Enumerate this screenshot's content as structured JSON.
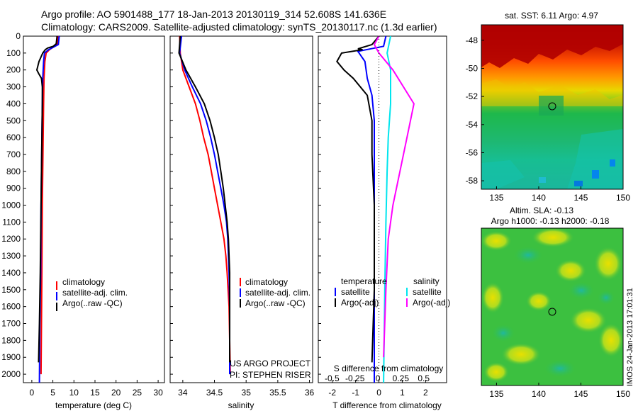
{
  "header": {
    "line1": "Argo profile: AO 5901488_177 18-Jan-2013 20130119_314 52.608S 141.636E",
    "line2": "Climatology: CARS2009. Satellite-adjusted climatology: synTS_20130117.nc (1.3d earlier)"
  },
  "colors": {
    "climatology": "#ff0000",
    "satellite": "#0000ff",
    "argo": "#000000",
    "sat_salinity": "#00e5ee",
    "argo_salinity": "#ff00ff"
  },
  "depth_ticks": [
    "0",
    "100",
    "200",
    "300",
    "400",
    "500",
    "600",
    "700",
    "800",
    "900",
    "1000",
    "1100",
    "1200",
    "1300",
    "1400",
    "1500",
    "1600",
    "1700",
    "1800",
    "1900",
    "2000"
  ],
  "legend_profiles": {
    "climatology": "climatology",
    "satellite": "satellite-adj. clim.",
    "argo": "Argo(..raw -QC)"
  },
  "legend_diff": {
    "temp_title": "temperature",
    "sal_title": "salinity",
    "temp_sat": "satellite",
    "temp_argo": "Argo(-adj)",
    "sal_sat": "satellite",
    "sal_argo": "Argo(-adj)"
  },
  "credits": {
    "line1": "US ARGO PROJECT",
    "line2": "PI: STEPHEN RISER"
  },
  "sst_map": {
    "title": "sat. SST: 6.11  Argo: 4.97",
    "xticks": [
      "135",
      "140",
      "145",
      "150"
    ],
    "yticks": [
      "-48",
      "-50",
      "-52",
      "-54",
      "-56",
      "-58"
    ]
  },
  "sla_map": {
    "title1": "Altim. SLA: -0.13",
    "title2": "Argo h1000: -0.13 h2000: -0.18",
    "xticks": [
      "135",
      "140",
      "145",
      "150"
    ],
    "yticks": [
      "-48",
      "-50",
      "-52",
      "-54",
      "-56",
      "-58"
    ]
  },
  "imos_stamp": "IMOS 24-Jan-2013 17:01:31",
  "chart_data": [
    {
      "type": "line",
      "xlabel": "temperature (deg C)",
      "xticks": [
        "0",
        "5",
        "10",
        "15",
        "20",
        "25",
        "30"
      ],
      "xlim": [
        -2,
        31.5
      ],
      "ylim": [
        2050,
        0
      ],
      "series": [
        {
          "name": "climatology",
          "color": "#ff0000",
          "points": [
            [
              6.2,
              0
            ],
            [
              6.0,
              50
            ],
            [
              4.2,
              80
            ],
            [
              3.4,
              100
            ],
            [
              3.1,
              150
            ],
            [
              2.9,
              250
            ],
            [
              2.8,
              400
            ],
            [
              2.7,
              600
            ],
            [
              2.6,
              800
            ],
            [
              2.5,
              1000
            ],
            [
              2.4,
              1400
            ],
            [
              2.3,
              1700
            ],
            [
              2.2,
              2000
            ]
          ]
        },
        {
          "name": "satellite-adj. clim.",
          "color": "#0000ff",
          "points": [
            [
              6.5,
              0
            ],
            [
              6.3,
              50
            ],
            [
              4.0,
              80
            ],
            [
              3.0,
              100
            ],
            [
              2.8,
              150
            ],
            [
              2.6,
              250
            ],
            [
              2.5,
              400
            ],
            [
              2.4,
              600
            ],
            [
              2.3,
              800
            ],
            [
              2.2,
              1000
            ],
            [
              2.1,
              1400
            ],
            [
              1.9,
              1700
            ],
            [
              1.8,
              2050
            ]
          ]
        },
        {
          "name": "Argo(..raw -QC)",
          "color": "#000000",
          "points": [
            [
              6.0,
              0
            ],
            [
              5.8,
              45
            ],
            [
              5.1,
              60
            ],
            [
              3.8,
              70
            ],
            [
              3.2,
              80
            ],
            [
              2.6,
              100
            ],
            [
              1.7,
              150
            ],
            [
              1.2,
              200
            ],
            [
              1.6,
              220
            ],
            [
              2.3,
              250
            ],
            [
              2.5,
              300
            ],
            [
              2.5,
              400
            ],
            [
              2.4,
              600
            ],
            [
              2.3,
              800
            ],
            [
              2.2,
              1000
            ],
            [
              2.0,
              1400
            ],
            [
              1.8,
              1700
            ],
            [
              1.6,
              1930
            ]
          ]
        }
      ]
    },
    {
      "type": "line",
      "xlabel": "salinity",
      "xticks": [
        "34",
        "34.5",
        "35",
        "35.5",
        "36"
      ],
      "xlim": [
        33.8,
        36.05
      ],
      "ylim": [
        2050,
        0
      ],
      "series": [
        {
          "name": "climatology",
          "color": "#ff0000",
          "points": [
            [
              33.95,
              0
            ],
            [
              33.96,
              100
            ],
            [
              34.0,
              200
            ],
            [
              34.1,
              300
            ],
            [
              34.2,
              400
            ],
            [
              34.27,
              500
            ],
            [
              34.33,
              600
            ],
            [
              34.4,
              700
            ],
            [
              34.45,
              800
            ],
            [
              34.5,
              900
            ],
            [
              34.55,
              1000
            ],
            [
              34.6,
              1100
            ],
            [
              34.65,
              1200
            ],
            [
              34.68,
              1300
            ],
            [
              34.7,
              1400
            ],
            [
              34.73,
              1600
            ],
            [
              34.74,
              1800
            ],
            [
              34.75,
              2000
            ]
          ]
        },
        {
          "name": "satellite-adj. clim.",
          "color": "#0000ff",
          "points": [
            [
              33.98,
              0
            ],
            [
              33.95,
              100
            ],
            [
              34.03,
              200
            ],
            [
              34.15,
              300
            ],
            [
              34.28,
              400
            ],
            [
              34.37,
              500
            ],
            [
              34.44,
              600
            ],
            [
              34.5,
              700
            ],
            [
              34.55,
              800
            ],
            [
              34.6,
              900
            ],
            [
              34.65,
              1000
            ],
            [
              34.69,
              1100
            ],
            [
              34.71,
              1200
            ],
            [
              34.72,
              1300
            ],
            [
              34.73,
              1400
            ],
            [
              34.74,
              1600
            ],
            [
              34.74,
              1800
            ],
            [
              34.74,
              2000
            ]
          ]
        },
        {
          "name": "Argo(..raw -QC)",
          "color": "#000000",
          "points": [
            [
              33.96,
              0
            ],
            [
              33.94,
              100
            ],
            [
              34.05,
              200
            ],
            [
              34.2,
              300
            ],
            [
              34.34,
              400
            ],
            [
              34.43,
              500
            ],
            [
              34.5,
              600
            ],
            [
              34.56,
              700
            ],
            [
              34.6,
              800
            ],
            [
              34.64,
              900
            ],
            [
              34.67,
              1000
            ],
            [
              34.7,
              1100
            ],
            [
              34.72,
              1200
            ],
            [
              34.73,
              1300
            ],
            [
              34.74,
              1400
            ],
            [
              34.74,
              1600
            ],
            [
              34.74,
              1800
            ],
            [
              34.74,
              1930
            ]
          ]
        }
      ]
    },
    {
      "type": "line",
      "xlabel": "T difference from climatology",
      "secondary_xlabel": "S difference from climatology",
      "xticks": [
        "-2",
        "-1",
        "0",
        "1",
        "2"
      ],
      "secondary_xticks": [
        "-0.5",
        "-0.25",
        "0",
        "0.25",
        "0.5"
      ],
      "xlim": [
        -2.6,
        2.9
      ],
      "ylim": [
        2050,
        0
      ],
      "series": [
        {
          "name": "temperature satellite",
          "color": "#0000ff",
          "points": [
            [
              0.3,
              0
            ],
            [
              0.2,
              60
            ],
            [
              -0.9,
              90
            ],
            [
              -0.6,
              150
            ],
            [
              -0.5,
              250
            ],
            [
              -0.3,
              350
            ],
            [
              -0.2,
              500
            ],
            [
              -0.2,
              700
            ],
            [
              -0.2,
              1000
            ],
            [
              -0.2,
              1500
            ],
            [
              -0.2,
              2050
            ]
          ]
        },
        {
          "name": "temperature Argo(-adj)",
          "color": "#000000",
          "points": [
            [
              0.0,
              0
            ],
            [
              -0.3,
              50
            ],
            [
              -0.9,
              75
            ],
            [
              -0.7,
              80
            ],
            [
              -1.6,
              100
            ],
            [
              -1.8,
              150
            ],
            [
              -1.5,
              200
            ],
            [
              -1.1,
              250
            ],
            [
              -0.5,
              350
            ],
            [
              -0.3,
              500
            ],
            [
              -0.3,
              700
            ],
            [
              -0.2,
              1000
            ],
            [
              -0.2,
              1500
            ],
            [
              -0.3,
              1930
            ]
          ]
        },
        {
          "name": "salinity satellite",
          "color": "#00e5ee",
          "points": [
            [
              0.5,
              0
            ],
            [
              0.35,
              100
            ],
            [
              0.5,
              200
            ],
            [
              0.5,
              400
            ],
            [
              0.4,
              600
            ],
            [
              0.35,
              800
            ],
            [
              0.3,
              1100
            ],
            [
              0.25,
              1500
            ],
            [
              0.2,
              2050
            ]
          ]
        },
        {
          "name": "salinity Argo(-adj)",
          "color": "#ff00ff",
          "points": [
            [
              0.0,
              0
            ],
            [
              -0.2,
              50
            ],
            [
              0.0,
              100
            ],
            [
              0.6,
              200
            ],
            [
              1.5,
              400
            ],
            [
              1.2,
              600
            ],
            [
              0.9,
              800
            ],
            [
              0.6,
              1000
            ],
            [
              0.4,
              1200
            ],
            [
              0.3,
              1500
            ],
            [
              0.2,
              1900
            ]
          ]
        }
      ]
    }
  ]
}
